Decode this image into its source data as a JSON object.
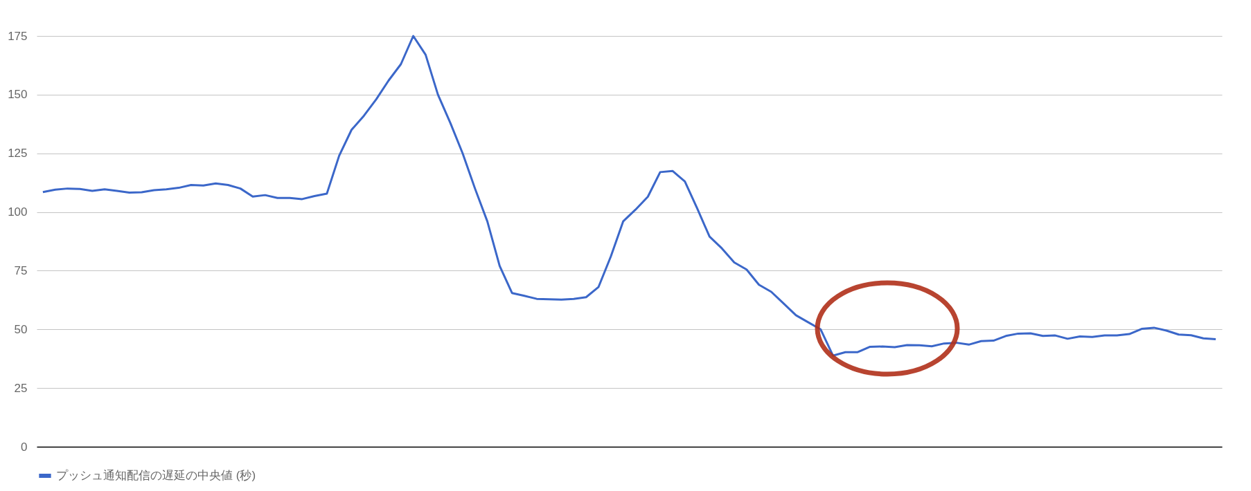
{
  "chart_data": {
    "type": "line",
    "categories": [
      null,
      null,
      null,
      null,
      null,
      null,
      null,
      null,
      null,
      null,
      null,
      null,
      null,
      null,
      null,
      null,
      null,
      null,
      null,
      null,
      null,
      null,
      null,
      null,
      null,
      null,
      null,
      null,
      null,
      null,
      null,
      null,
      null,
      null,
      null,
      null,
      null,
      null,
      null,
      null,
      null,
      null,
      null,
      null,
      null,
      null,
      null,
      null,
      null,
      null,
      null,
      null,
      null,
      null,
      null,
      null,
      null,
      null,
      null,
      null,
      null,
      null,
      null,
      null,
      null,
      null,
      null,
      null,
      null,
      null,
      null,
      null,
      null,
      null,
      null,
      null,
      null,
      null,
      null,
      null,
      null,
      null,
      null,
      null,
      null,
      null,
      null,
      null,
      null,
      null,
      null,
      null,
      null,
      null,
      null,
      null
    ],
    "series": [
      {
        "name": "プッシュ通知配信の遅延の中央値 (秒)",
        "color": "#3b67c9",
        "values": [
          108.5,
          109.5,
          110,
          109.8,
          109,
          109.7,
          109,
          108.3,
          108.4,
          109.3,
          109.7,
          110.3,
          111.5,
          111.3,
          112.2,
          111.5,
          110,
          106.6,
          107.2,
          106,
          106,
          105.5,
          106.8,
          107.8,
          124,
          135,
          141,
          148,
          156,
          163,
          175,
          167,
          150,
          138,
          125,
          110,
          96,
          77,
          65.5,
          64.3,
          63,
          62.8,
          62.7,
          63,
          63.7,
          68,
          81,
          96,
          101,
          106.5,
          117,
          117.5,
          113,
          101.5,
          89.5,
          84.5,
          78.5,
          75.5,
          69,
          66,
          61,
          56,
          53,
          50,
          38.8,
          40.3,
          40.3,
          42.6,
          42.7,
          42.4,
          43.3,
          43.2,
          42.8,
          44,
          44.3,
          43.5,
          45,
          45.2,
          47.2,
          48.2,
          48.3,
          47.2,
          47.4,
          46,
          47,
          46.8,
          47.4,
          47.4,
          48,
          50.2,
          50.7,
          49.5,
          47.8,
          47.5,
          46.2,
          45.8
        ]
      }
    ],
    "ylim": [
      0,
      175
    ],
    "yticks": [
      0,
      25,
      50,
      75,
      100,
      125,
      150,
      175
    ],
    "grid": "y",
    "legend": "bottom",
    "tick_labels": "y",
    "marker": "none",
    "line_style": "solid"
  }
}
